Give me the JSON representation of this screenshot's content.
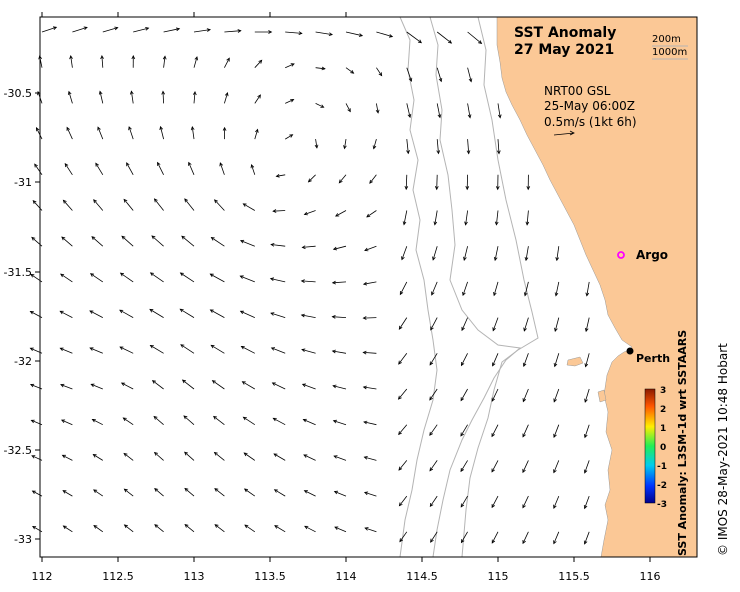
{
  "title": {
    "line1": "SST Anomaly",
    "line2": "27 May 2021"
  },
  "isobaths": {
    "label_200": "200m",
    "label_1000": "1000m"
  },
  "currents": {
    "line1": "NRT00 GSL",
    "line2": "25-May 06:00Z",
    "line3": "0.5m/s (1kt 6h)"
  },
  "places": {
    "argo": "Argo",
    "perth": "Perth"
  },
  "axes": {
    "x_ticks": [
      "112",
      "112.5",
      "113",
      "113.5",
      "114",
      "114.5",
      "115",
      "115.5",
      "116"
    ],
    "y_ticks": [
      "-30.5",
      "-31",
      "-31.5",
      "-32",
      "-32.5",
      "-33"
    ]
  },
  "colorbar": {
    "label": "SST Anomaly: L3SM-1d wrt SSTAARS",
    "ticks": [
      "3",
      "2",
      "1",
      "0",
      "-1",
      "-2",
      "-3"
    ]
  },
  "credit": "© IMOS 28-May-2021 10:48 Hobart",
  "colors": {
    "land": "#fbc896",
    "argo_marker": "#ff00ff",
    "isobath": "#b4b4b4"
  }
}
